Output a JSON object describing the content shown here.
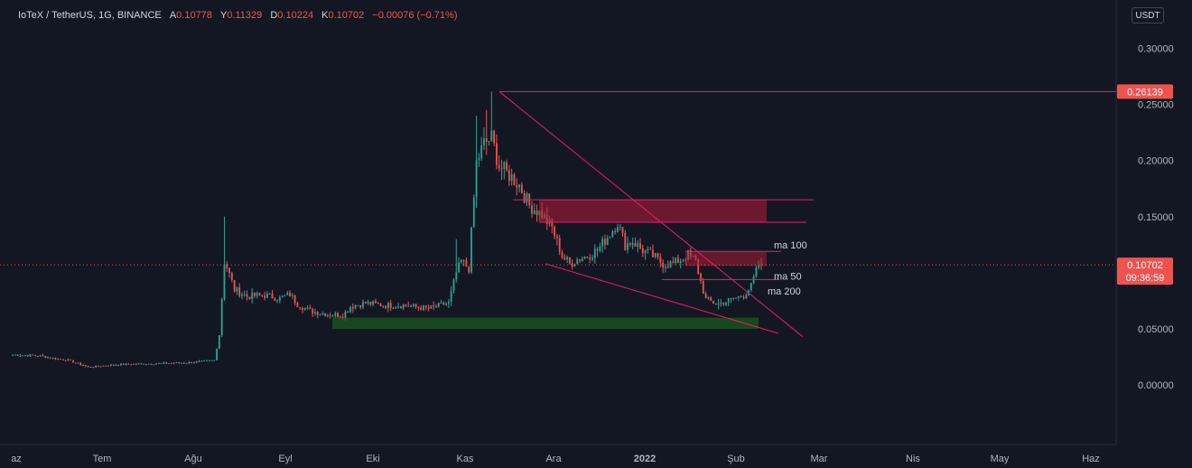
{
  "header": {
    "symbol": "IoTeX / TetherUS, 1G, BINANCE",
    "open_key": "A",
    "open": "0.10778",
    "high_key": "Y",
    "high": "0.11329",
    "low_key": "D",
    "low": "0.10224",
    "close_key": "K",
    "close": "0.10702",
    "change": "−0.00076 (−0.71%)"
  },
  "currency_button": "USDT",
  "colors": {
    "background": "#131722",
    "up": "#26a69a",
    "down": "#ef5350",
    "trend_line": "#e91e63",
    "resistance_zone": "#b71c3c",
    "support_zone": "#1b5e20"
  },
  "chart_data": {
    "type": "candlestick",
    "x_axis": {
      "labels": [
        "az",
        "Tem",
        "Ağu",
        "Eyl",
        "Eki",
        "Kas",
        "Ara",
        "2022",
        "Şub",
        "Mar",
        "Nis",
        "May",
        "Haz"
      ]
    },
    "y_axis": {
      "ticks": [
        "0.30000",
        "0.25000",
        "0.20000",
        "0.15000",
        "0.05000",
        "0.00000"
      ],
      "ylim": [
        -0.045,
        0.335
      ]
    },
    "price_labels": [
      {
        "value": "0.26139",
        "y": 0.26139
      },
      {
        "value": "0.10702",
        "y": 0.10702,
        "countdown": "09:36:59"
      }
    ],
    "annotations": [
      {
        "text": "ma 100"
      },
      {
        "text": "ma 50"
      },
      {
        "text": "ma 200"
      }
    ],
    "anchors": [
      [
        0,
        0.027
      ],
      [
        10,
        0.026
      ],
      [
        22,
        0.022
      ],
      [
        30,
        0.016
      ],
      [
        40,
        0.018
      ],
      [
        55,
        0.019
      ],
      [
        70,
        0.02
      ],
      [
        80,
        0.022
      ],
      [
        82,
        0.045
      ],
      [
        84,
        0.11
      ],
      [
        85,
        0.105
      ],
      [
        88,
        0.085
      ],
      [
        93,
        0.079
      ],
      [
        100,
        0.08
      ],
      [
        106,
        0.077
      ],
      [
        110,
        0.081
      ],
      [
        113,
        0.072
      ],
      [
        118,
        0.066
      ],
      [
        125,
        0.063
      ],
      [
        131,
        0.062
      ],
      [
        134,
        0.07
      ],
      [
        140,
        0.073
      ],
      [
        148,
        0.071
      ],
      [
        155,
        0.071
      ],
      [
        165,
        0.068
      ],
      [
        173,
        0.073
      ],
      [
        176,
        0.1
      ],
      [
        178,
        0.11
      ],
      [
        181,
        0.104
      ],
      [
        184,
        0.198
      ],
      [
        187,
        0.215
      ],
      [
        190,
        0.22
      ],
      [
        193,
        0.195
      ],
      [
        198,
        0.185
      ],
      [
        201,
        0.178
      ],
      [
        205,
        0.16
      ],
      [
        210,
        0.152
      ],
      [
        214,
        0.14
      ],
      [
        218,
        0.115
      ],
      [
        221,
        0.108
      ],
      [
        224,
        0.112
      ],
      [
        228,
        0.115
      ],
      [
        232,
        0.12
      ],
      [
        237,
        0.135
      ],
      [
        240,
        0.145
      ],
      [
        243,
        0.125
      ],
      [
        246,
        0.128
      ],
      [
        250,
        0.12
      ],
      [
        254,
        0.115
      ],
      [
        258,
        0.108
      ],
      [
        262,
        0.108
      ],
      [
        265,
        0.112
      ],
      [
        268,
        0.116
      ],
      [
        271,
        0.11
      ],
      [
        273,
        0.092
      ],
      [
        275,
        0.076
      ],
      [
        280,
        0.072
      ],
      [
        285,
        0.076
      ],
      [
        290,
        0.08
      ],
      [
        293,
        0.088
      ],
      [
        296,
        0.108
      ],
      [
        297,
        0.107
      ]
    ]
  }
}
